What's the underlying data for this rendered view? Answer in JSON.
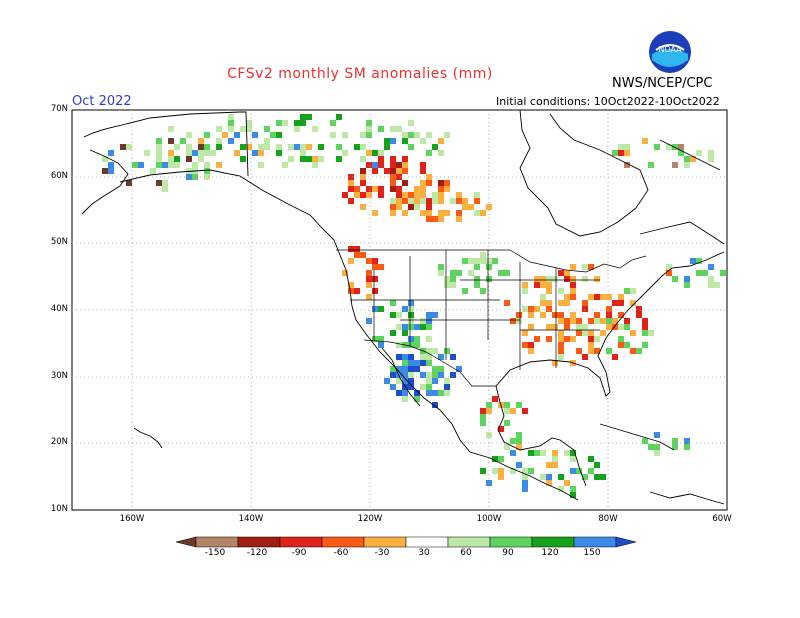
{
  "header": {
    "title": "CFSv2 monthly SM anomalies (mm)",
    "month": "Oct 2022",
    "agency": "NWS/NCEP/CPC",
    "initial_conditions": "Initial conditions: 10Oct2022-10Oct2022",
    "logo_text": "NOAA"
  },
  "axes": {
    "lat_labels": [
      "70N",
      "60N",
      "50N",
      "40N",
      "30N",
      "20N",
      "10N"
    ],
    "lon_labels": [
      "160W",
      "140W",
      "120W",
      "100W",
      "80W",
      "60W"
    ]
  },
  "colorbar": {
    "labels": [
      "-150",
      "-120",
      "-90",
      "-60",
      "-30",
      "30",
      "60",
      "90",
      "120",
      "150"
    ],
    "colors": [
      "#6b3a2a",
      "#b48468",
      "#a01e12",
      "#e0231a",
      "#fb5a14",
      "#fbb040",
      "#ffffff",
      "#bde8a8",
      "#5ed45e",
      "#17a21c",
      "#3b8ae6",
      "#1a4fc7"
    ]
  },
  "regions": [
    {
      "name": "dry Southern Canada / Alberta",
      "color": "#fbb040"
    },
    {
      "name": "very dry central Canada",
      "color": "#e0231a"
    },
    {
      "name": "dry Midwest / Ohio Valley",
      "color": "#fbb040"
    },
    {
      "name": "wet US Southwest / Mexico",
      "color": "#3b8ae6"
    },
    {
      "name": "wet Caribbean / Central America",
      "color": "#5ed45e"
    }
  ]
}
